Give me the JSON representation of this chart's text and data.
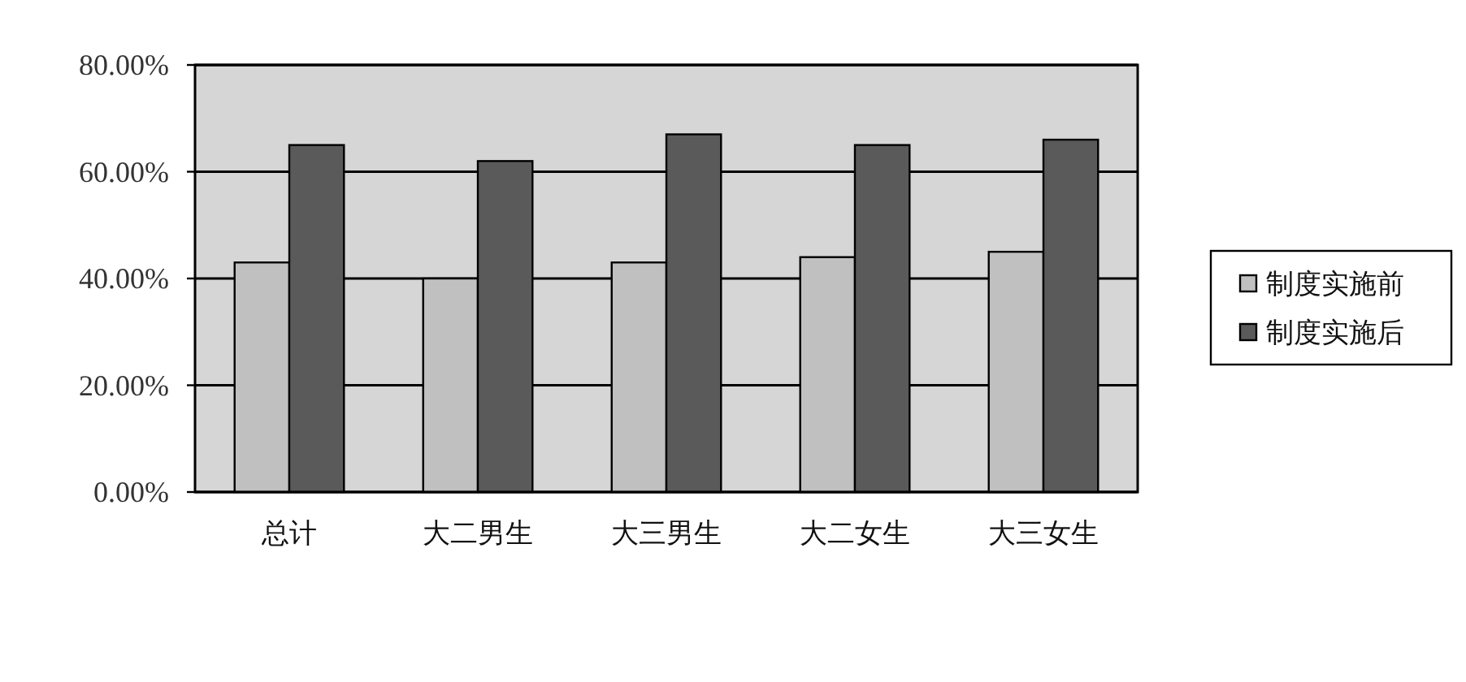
{
  "chart_data": {
    "type": "bar",
    "categories": [
      "总计",
      "大二男生",
      "大三男生",
      "大二女生",
      "大三女生"
    ],
    "series": [
      {
        "name": "制度实施前",
        "color": "#c0c0c0",
        "values": [
          43,
          40,
          43,
          44,
          45
        ]
      },
      {
        "name": "制度实施后",
        "color": "#5a5a5a",
        "values": [
          65,
          62,
          67,
          65,
          66
        ]
      }
    ],
    "ylim": [
      0,
      80
    ],
    "yticks": [
      {
        "value": 0,
        "label": "0.00%"
      },
      {
        "value": 20,
        "label": "20.00%"
      },
      {
        "value": 40,
        "label": "40.00%"
      },
      {
        "value": 60,
        "label": "60.00%"
      },
      {
        "value": 80,
        "label": "80.00%"
      }
    ],
    "grid": "y",
    "legend": "right"
  }
}
